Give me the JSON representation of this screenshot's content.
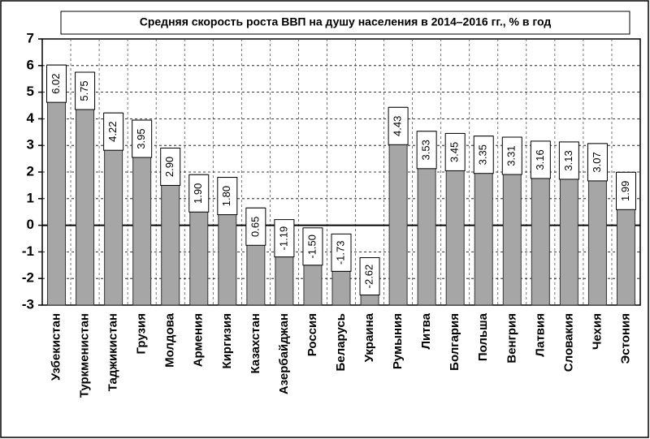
{
  "chart_data": {
    "type": "bar",
    "title": "Средняя скорость роста ВВП на душу населения в 2014–2016 гг., % в год",
    "categories": [
      "Узбекистан",
      "Туркменистан",
      "Таджикистан",
      "Грузия",
      "Молдова",
      "Армения",
      "Киргизия",
      "Казахстан",
      "Азербайджан",
      "Россия",
      "Беларусь",
      "Украина",
      "Румыния",
      "Литва",
      "Болгария",
      "Польша",
      "Венгрия",
      "Латвия",
      "Словакия",
      "Чехия",
      "Эстония"
    ],
    "values": [
      6.02,
      5.75,
      4.22,
      3.95,
      2.9,
      1.9,
      1.8,
      0.65,
      -1.19,
      -1.5,
      -1.73,
      -2.62,
      4.43,
      3.53,
      3.45,
      3.35,
      3.31,
      3.16,
      3.13,
      3.07,
      1.99
    ],
    "value_labels": [
      "6.02",
      "5.75",
      "4.22",
      "3.95",
      "2.90",
      "1.90",
      "1.80",
      "0.65",
      "-1.19",
      "-1.50",
      "-1.73",
      "-2.62",
      "4.43",
      "3.53",
      "3.45",
      "3.35",
      "3.31",
      "3.16",
      "3.13",
      "3.07",
      "1.99"
    ],
    "color": "#a6a6a6",
    "ylim": [
      -3,
      7
    ],
    "yticks": [
      -3,
      -2,
      -1,
      0,
      1,
      2,
      3,
      4,
      5,
      6,
      7
    ],
    "grid": true
  }
}
